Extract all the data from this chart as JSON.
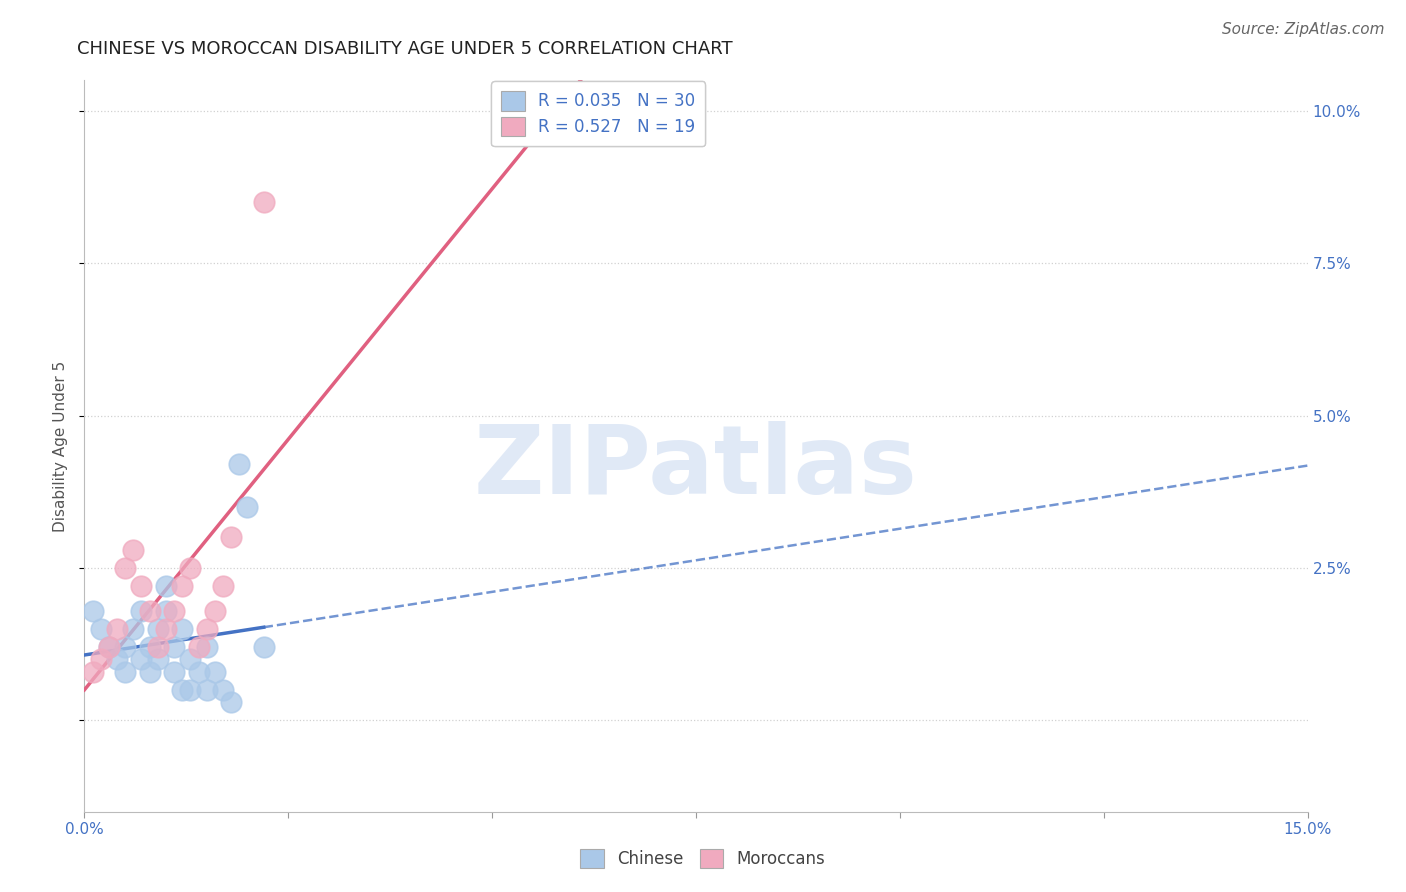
{
  "title": "CHINESE VS MOROCCAN DISABILITY AGE UNDER 5 CORRELATION CHART",
  "source": "Source: ZipAtlas.com",
  "ylabel": "Disability Age Under 5",
  "xlim": [
    0.0,
    0.15
  ],
  "ylim": [
    -0.015,
    0.105
  ],
  "yticks": [
    0.0,
    0.025,
    0.05,
    0.075,
    0.1
  ],
  "ytick_labels": [
    "",
    "2.5%",
    "5.0%",
    "7.5%",
    "10.0%"
  ],
  "xticks": [
    0.0,
    0.025,
    0.05,
    0.075,
    0.1,
    0.125,
    0.15
  ],
  "xtick_labels": [
    "0.0%",
    "",
    "",
    "",
    "",
    "",
    "15.0%"
  ],
  "chinese_R": 0.035,
  "chinese_N": 30,
  "moroccan_R": 0.527,
  "moroccan_N": 19,
  "chinese_color": "#aac8e8",
  "moroccan_color": "#f0aabf",
  "chinese_line_color": "#4472c4",
  "moroccan_line_color": "#e06080",
  "background_color": "#ffffff",
  "grid_color": "#cccccc",
  "chinese_x": [
    0.001,
    0.002,
    0.003,
    0.004,
    0.005,
    0.005,
    0.006,
    0.007,
    0.007,
    0.008,
    0.008,
    0.009,
    0.009,
    0.01,
    0.01,
    0.011,
    0.011,
    0.012,
    0.012,
    0.013,
    0.013,
    0.014,
    0.015,
    0.015,
    0.016,
    0.017,
    0.018,
    0.019,
    0.02,
    0.022
  ],
  "chinese_y": [
    0.018,
    0.015,
    0.012,
    0.01,
    0.008,
    0.012,
    0.015,
    0.018,
    0.01,
    0.012,
    0.008,
    0.015,
    0.01,
    0.022,
    0.018,
    0.012,
    0.008,
    0.015,
    0.005,
    0.01,
    0.005,
    0.008,
    0.012,
    0.005,
    0.008,
    0.005,
    0.003,
    0.042,
    0.035,
    0.012
  ],
  "moroccan_x": [
    0.001,
    0.002,
    0.003,
    0.004,
    0.005,
    0.006,
    0.007,
    0.008,
    0.009,
    0.01,
    0.011,
    0.012,
    0.013,
    0.014,
    0.015,
    0.016,
    0.017,
    0.018,
    0.022
  ],
  "moroccan_y": [
    0.008,
    0.01,
    0.012,
    0.015,
    0.025,
    0.028,
    0.022,
    0.018,
    0.012,
    0.015,
    0.018,
    0.022,
    0.025,
    0.012,
    0.015,
    0.018,
    0.022,
    0.03,
    0.085
  ],
  "chinese_line_x0": 0.0,
  "chinese_line_x_solid_end": 0.022,
  "chinese_line_x_dashed_end": 0.15,
  "moroccan_line_x0": 0.0,
  "moroccan_line_x1": 0.15,
  "watermark_text": "ZIPatlas",
  "watermark_color": "#c8d8f0",
  "title_fontsize": 13,
  "label_fontsize": 11,
  "tick_fontsize": 11,
  "legend_fontsize": 12,
  "source_fontsize": 11
}
